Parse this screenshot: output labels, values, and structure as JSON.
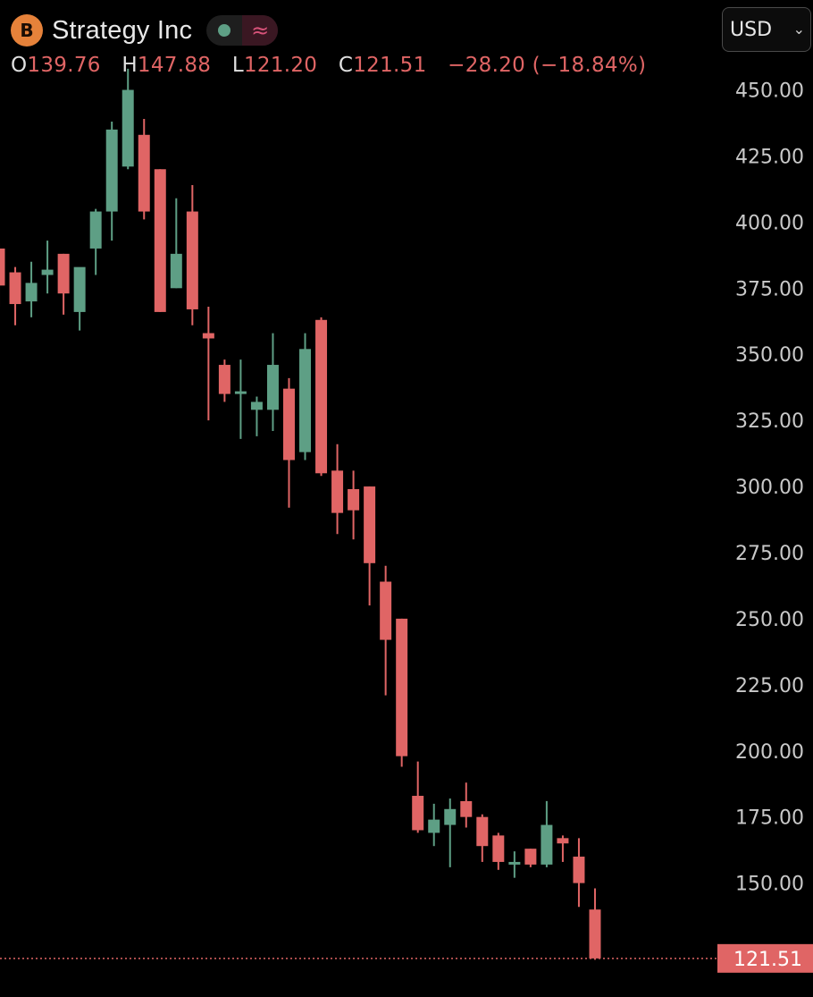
{
  "header": {
    "symbol_name": "Strategy Inc",
    "logo_glyph": "B",
    "logo_icon": "bitcoin-logo-icon",
    "status_wave_glyph": "≈",
    "ohlc": {
      "open_key": "O",
      "open": "139.76",
      "high_key": "H",
      "high": "147.88",
      "low_key": "L",
      "low": "121.20",
      "close_key": "C",
      "close": "121.51",
      "change": "−28.20 (−18.84%)"
    }
  },
  "currency": {
    "selected": "USD"
  },
  "colors": {
    "up": "#5e9f85",
    "down": "#e06565",
    "background": "#000000",
    "axis_text": "#c9c9c9"
  },
  "chart_data": {
    "type": "candlestick",
    "ylim": [
      113,
      484
    ],
    "y_ticks": [
      "450.00",
      "425.00",
      "400.00",
      "375.00",
      "350.00",
      "325.00",
      "300.00",
      "275.00",
      "250.00",
      "225.00",
      "200.00",
      "175.00",
      "150.00"
    ],
    "y_tick_values": [
      450,
      425,
      400,
      375,
      350,
      325,
      300,
      275,
      250,
      225,
      200,
      175,
      150
    ],
    "last_price": 121.51,
    "last_price_label": "121.51",
    "grid": false,
    "candles": [
      {
        "o": 390,
        "h": 392,
        "l": 368,
        "c": 376
      },
      {
        "o": 381,
        "h": 383,
        "l": 361,
        "c": 369
      },
      {
        "o": 370,
        "h": 385,
        "l": 364,
        "c": 377
      },
      {
        "o": 380,
        "h": 393,
        "l": 373,
        "c": 382
      },
      {
        "o": 388,
        "h": 388,
        "l": 365,
        "c": 373
      },
      {
        "o": 366,
        "h": 382,
        "l": 359,
        "c": 383
      },
      {
        "o": 390,
        "h": 405,
        "l": 380,
        "c": 404
      },
      {
        "o": 404,
        "h": 438,
        "l": 393,
        "c": 435
      },
      {
        "o": 421,
        "h": 458,
        "l": 420,
        "c": 450
      },
      {
        "o": 433,
        "h": 439,
        "l": 401,
        "c": 404
      },
      {
        "o": 420,
        "h": 420,
        "l": 366,
        "c": 366
      },
      {
        "o": 375,
        "h": 409,
        "l": 375,
        "c": 388
      },
      {
        "o": 404,
        "h": 414,
        "l": 361,
        "c": 367
      },
      {
        "o": 358,
        "h": 368,
        "l": 325,
        "c": 356
      },
      {
        "o": 346,
        "h": 348,
        "l": 332,
        "c": 335
      },
      {
        "o": 336,
        "h": 348,
        "l": 318,
        "c": 336
      },
      {
        "o": 329,
        "h": 334,
        "l": 319,
        "c": 332
      },
      {
        "o": 329,
        "h": 358,
        "l": 321,
        "c": 346
      },
      {
        "o": 337,
        "h": 341,
        "l": 292,
        "c": 310
      },
      {
        "o": 313,
        "h": 358,
        "l": 310,
        "c": 352
      },
      {
        "o": 363,
        "h": 364,
        "l": 304,
        "c": 305
      },
      {
        "o": 306,
        "h": 316,
        "l": 282,
        "c": 290
      },
      {
        "o": 299,
        "h": 306,
        "l": 280,
        "c": 291
      },
      {
        "o": 300,
        "h": 300,
        "l": 255,
        "c": 271
      },
      {
        "o": 264,
        "h": 270,
        "l": 221,
        "c": 242
      },
      {
        "o": 250,
        "h": 250,
        "l": 194,
        "c": 198
      },
      {
        "o": 183,
        "h": 196,
        "l": 169,
        "c": 170
      },
      {
        "o": 169,
        "h": 180,
        "l": 164,
        "c": 174
      },
      {
        "o": 172,
        "h": 182,
        "l": 156,
        "c": 178
      },
      {
        "o": 181,
        "h": 188,
        "l": 171,
        "c": 175
      },
      {
        "o": 175,
        "h": 176,
        "l": 158,
        "c": 164
      },
      {
        "o": 168,
        "h": 169,
        "l": 155,
        "c": 158
      },
      {
        "o": 157,
        "h": 162,
        "l": 152,
        "c": 158
      },
      {
        "o": 163,
        "h": 163,
        "l": 156,
        "c": 157
      },
      {
        "o": 157,
        "h": 181,
        "l": 156,
        "c": 172
      },
      {
        "o": 167,
        "h": 168,
        "l": 158,
        "c": 165
      },
      {
        "o": 160,
        "h": 167,
        "l": 141,
        "c": 150
      },
      {
        "o": 140,
        "h": 148,
        "l": 121,
        "c": 121.5
      }
    ]
  }
}
